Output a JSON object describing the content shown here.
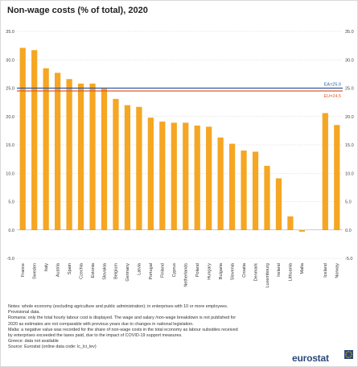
{
  "title": "Non-wage costs (% of total), 2020",
  "chart_data": {
    "type": "bar",
    "title": "Non-wage costs (% of total), 2020",
    "categories": [
      "France",
      "Sweden",
      "Italy",
      "Austria",
      "Spain",
      "Czechia",
      "Estonia",
      "Slovakia",
      "Belgium",
      "Germany",
      "Latvia",
      "Portugal",
      "Finland",
      "Cyprus",
      "Netherlands",
      "Poland",
      "Hungary",
      "Bulgaria",
      "Slovenia",
      "Croatia",
      "Denmark",
      "Luxembourg",
      "Ireland",
      "Lithuania",
      "Malta",
      "",
      "Iceland",
      "Norway"
    ],
    "values": [
      32.1,
      31.7,
      28.5,
      27.7,
      26.6,
      25.8,
      25.8,
      24.9,
      23.1,
      22.0,
      21.7,
      19.8,
      19.1,
      18.9,
      18.9,
      18.4,
      18.2,
      16.3,
      15.2,
      14.0,
      13.8,
      11.3,
      9.1,
      2.4,
      -0.3,
      null,
      20.6,
      18.5
    ],
    "ylim": [
      -5,
      35
    ],
    "yticks": [
      "-5.0",
      "0.0",
      "5.0",
      "10.0",
      "15.0",
      "20.0",
      "25.0",
      "30.0",
      "35.0"
    ],
    "reference_lines": [
      {
        "label": "EA=25.0",
        "value": 25.0,
        "color": "#2c5aa0"
      },
      {
        "label": "EU=24.5",
        "value": 24.5,
        "color": "#e05a2b"
      }
    ],
    "bar_color": "#f5a623",
    "grid": true
  },
  "notes": [
    "Notes: whole economy (excluding agriculture and public administration); in enterprises with 10 or more employees.",
    "Provisional data.",
    "Romania: only the total hourly labour cost is displayed. The wage and salary /non-wage breakdown is not published for",
    "2020 as estimates are not comparable with previous years due to changes in national legislation.",
    "Malta: a negative value was recorded for the share of non-wage costs in the total economy as labour subsidies received",
    "by enterprises exceeded the taxes paid, due to the impact of COVID-19 support measures.",
    "Greece: data not available",
    "Source: Eurostat (online data code: lc_lci_lev)"
  ],
  "logo": {
    "text": "eurostat",
    "icon": "eu-stars-icon"
  }
}
